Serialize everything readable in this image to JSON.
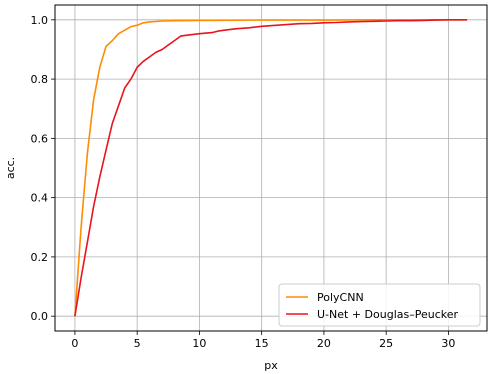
{
  "chart_data": {
    "type": "line",
    "title": "",
    "xlabel": "px",
    "ylabel": "acc.",
    "xlim": [
      -1.6,
      33.1
    ],
    "ylim": [
      -0.05,
      1.05
    ],
    "x_ticks": [
      0,
      5,
      10,
      15,
      20,
      25,
      30
    ],
    "y_ticks": [
      0.0,
      0.2,
      0.4,
      0.6,
      0.8,
      1.0
    ],
    "x_tick_labels": [
      "0",
      "5",
      "10",
      "15",
      "20",
      "25",
      "30"
    ],
    "y_tick_labels": [
      "0.0",
      "0.2",
      "0.4",
      "0.6",
      "0.8",
      "1.0"
    ],
    "grid": true,
    "legend_position": "bottom-right",
    "series": [
      {
        "name": "PolyCNN",
        "color": "#ff8c00",
        "x": [
          0,
          0.5,
          1,
          1.5,
          2,
          2.5,
          3,
          3.5,
          4,
          4.5,
          5,
          5.5,
          6,
          7,
          8,
          10,
          15,
          20,
          25,
          31.5
        ],
        "y": [
          0.0,
          0.3,
          0.55,
          0.73,
          0.84,
          0.91,
          0.93,
          0.953,
          0.965,
          0.977,
          0.982,
          0.99,
          0.993,
          0.996,
          0.997,
          0.998,
          0.999,
          0.999,
          1.0,
          1.0
        ]
      },
      {
        "name": "U-Net + Douglas–Peucker",
        "color": "#e8141e",
        "x": [
          0,
          0.5,
          1,
          1.5,
          2,
          2.5,
          3,
          3.5,
          4,
          4.5,
          5,
          5.5,
          6,
          6.5,
          7,
          7.5,
          8,
          8.5,
          9,
          10,
          11,
          11.5,
          12,
          13,
          14,
          15,
          16,
          17,
          18,
          19,
          20,
          21,
          22,
          23,
          24,
          25,
          26,
          27,
          28,
          29,
          30,
          31.5
        ],
        "y": [
          0.0,
          0.13,
          0.25,
          0.37,
          0.47,
          0.56,
          0.65,
          0.71,
          0.77,
          0.8,
          0.84,
          0.86,
          0.875,
          0.89,
          0.9,
          0.915,
          0.93,
          0.945,
          0.948,
          0.953,
          0.957,
          0.962,
          0.965,
          0.97,
          0.973,
          0.978,
          0.981,
          0.984,
          0.987,
          0.988,
          0.99,
          0.991,
          0.993,
          0.994,
          0.995,
          0.996,
          0.997,
          0.997,
          0.998,
          0.999,
          1.0,
          1.0
        ]
      }
    ]
  }
}
